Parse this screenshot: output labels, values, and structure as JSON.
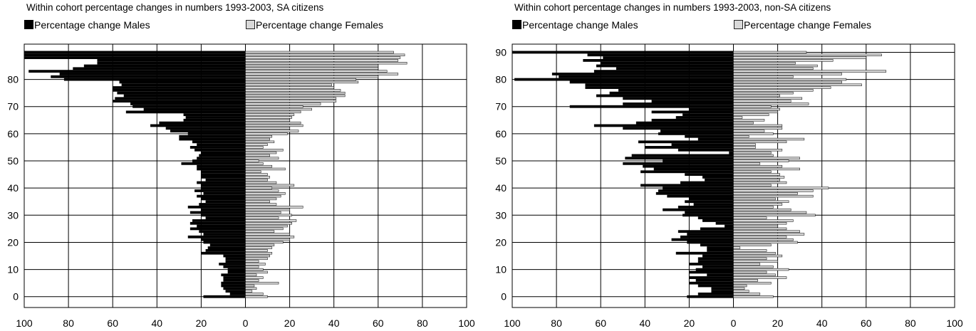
{
  "chart_data": [
    {
      "type": "bar",
      "orientation": "horizontal-butterfly",
      "title": "Within cohort percentage changes in numbers 1993-2003, SA citizens",
      "xlim": [
        -100,
        100
      ],
      "ylim": [
        -4,
        93
      ],
      "x_tick_labels": [
        "100",
        "80",
        "60",
        "40",
        "20",
        "0",
        "20",
        "40",
        "60",
        "80",
        "100"
      ],
      "y_ticks": [
        80,
        70,
        60,
        50,
        40,
        30,
        20,
        10,
        0
      ],
      "grid": true,
      "legend_position": "top",
      "colors": {
        "males": "#000000",
        "females": "#d9d9d9",
        "female_stroke": "#222222"
      },
      "categories": [
        0,
        1,
        2,
        3,
        4,
        5,
        6,
        7,
        8,
        9,
        10,
        11,
        12,
        13,
        14,
        15,
        16,
        17,
        18,
        19,
        20,
        21,
        22,
        23,
        24,
        25,
        26,
        27,
        28,
        29,
        30,
        31,
        32,
        33,
        34,
        35,
        36,
        37,
        38,
        39,
        40,
        41,
        42,
        43,
        44,
        45,
        46,
        47,
        48,
        49,
        50,
        51,
        52,
        53,
        54,
        55,
        56,
        57,
        58,
        59,
        60,
        61,
        62,
        63,
        64,
        65,
        66,
        67,
        68,
        69,
        70,
        71,
        72,
        73,
        74,
        75,
        76,
        77,
        78,
        79,
        80,
        81,
        82,
        83,
        84,
        85,
        86,
        87,
        88,
        89,
        90
      ],
      "series": [
        {
          "name": "Percentage change Males",
          "values": [
            -19,
            -7,
            -9,
            -10,
            -11,
            -11,
            -10,
            -10,
            -11,
            -8,
            -8,
            -10,
            -12,
            -9,
            -9,
            -10,
            -20,
            -18,
            -17,
            -16,
            -19,
            -20,
            -26,
            -19,
            -21,
            -25,
            -22,
            -25,
            -24,
            -18,
            -20,
            -25,
            -20,
            -26,
            -21,
            -18,
            -20,
            -22,
            -19,
            -23,
            -20,
            -20,
            -22,
            -18,
            -20,
            -20,
            -20,
            -22,
            -22,
            -29,
            -24,
            -22,
            -21,
            -20,
            -23,
            -25,
            -22,
            -24,
            -30,
            -30,
            -26,
            -34,
            -36,
            -43,
            -39,
            -28,
            -27,
            -28,
            -54,
            -46,
            -51,
            -52,
            -60,
            -59,
            -55,
            -58,
            -60,
            -60,
            -56,
            -57,
            -82,
            -88,
            -84,
            -98,
            -78,
            -73,
            -67,
            -67,
            -100,
            -100,
            -100
          ]
        },
        {
          "name": "Percentage change Females",
          "values": [
            10,
            8,
            3,
            5,
            4,
            15,
            6,
            8,
            5,
            10,
            8,
            6,
            9,
            6,
            10,
            11,
            12,
            10,
            12,
            13,
            17,
            20,
            22,
            20,
            13,
            17,
            19,
            21,
            23,
            15,
            21,
            16,
            20,
            26,
            14,
            11,
            14,
            16,
            18,
            15,
            12,
            22,
            14,
            10,
            11,
            10,
            7,
            18,
            12,
            8,
            6,
            15,
            11,
            14,
            17,
            8,
            10,
            13,
            11,
            12,
            19,
            24,
            20,
            26,
            25,
            20,
            21,
            22,
            25,
            30,
            26,
            34,
            41,
            41,
            45,
            45,
            43,
            40,
            39,
            51,
            50,
            60,
            69,
            64,
            60,
            60,
            73,
            69,
            70,
            72,
            67
          ]
        }
      ]
    },
    {
      "type": "bar",
      "orientation": "horizontal-butterfly",
      "title": "Within cohort percentage changes in numbers 1993-2003, non-SA citizens",
      "xlim": [
        -100,
        100
      ],
      "ylim": [
        -4,
        93
      ],
      "x_tick_labels": [
        "100",
        "80",
        "60",
        "40",
        "20",
        "0",
        "20",
        "40",
        "60",
        "80",
        "100"
      ],
      "y_ticks": [
        90,
        80,
        70,
        60,
        50,
        40,
        30,
        20,
        10,
        0
      ],
      "grid": true,
      "legend_position": "top",
      "colors": {
        "males": "#000000",
        "females": "#d9d9d9",
        "female_stroke": "#222222"
      },
      "categories": [
        0,
        1,
        2,
        3,
        4,
        5,
        6,
        7,
        8,
        9,
        10,
        11,
        12,
        13,
        14,
        15,
        16,
        17,
        18,
        19,
        20,
        21,
        22,
        23,
        24,
        25,
        26,
        27,
        28,
        29,
        30,
        31,
        32,
        33,
        34,
        35,
        36,
        37,
        38,
        39,
        40,
        41,
        42,
        43,
        44,
        45,
        46,
        47,
        48,
        49,
        50,
        51,
        52,
        53,
        54,
        55,
        56,
        57,
        58,
        59,
        60,
        61,
        62,
        63,
        64,
        65,
        66,
        67,
        68,
        69,
        70,
        71,
        72,
        73,
        74,
        75,
        76,
        77,
        78,
        79,
        80,
        81,
        82,
        83,
        84,
        85,
        86,
        87,
        88,
        89,
        90
      ],
      "series": [
        {
          "name": "Percentage change Males",
          "values": [
            -21,
            -16,
            -10,
            -10,
            -16,
            -20,
            -17,
            -20,
            -12,
            -20,
            -17,
            -14,
            -20,
            -16,
            -16,
            -14,
            -26,
            -12,
            -12,
            -15,
            -21,
            -28,
            -24,
            -21,
            -25,
            -15,
            -4,
            -8,
            -14,
            -16,
            -23,
            -22,
            -32,
            -25,
            -18,
            -22,
            -20,
            -30,
            -35,
            -34,
            -32,
            -42,
            -24,
            -13,
            -14,
            -22,
            -42,
            -36,
            -41,
            -50,
            -32,
            -49,
            -46,
            -2,
            -25,
            -40,
            -28,
            -43,
            -16,
            -22,
            -34,
            -33,
            -50,
            -63,
            -44,
            -37,
            -26,
            -23,
            -37,
            -20,
            -74,
            -50,
            -37,
            -50,
            -62,
            -56,
            -52,
            -67,
            -67,
            -74,
            -99,
            -79,
            -82,
            -63,
            -53,
            -62,
            -60,
            -68,
            -59,
            -66,
            -100
          ]
        },
        {
          "name": "Percentage change Females",
          "values": [
            18,
            12,
            7,
            5,
            6,
            17,
            11,
            24,
            19,
            15,
            25,
            18,
            12,
            20,
            15,
            22,
            19,
            15,
            3,
            17,
            29,
            27,
            24,
            32,
            30,
            24,
            20,
            24,
            27,
            15,
            37,
            33,
            26,
            18,
            22,
            25,
            19,
            36,
            29,
            36,
            43,
            17,
            24,
            21,
            23,
            21,
            17,
            30,
            22,
            12,
            25,
            30,
            18,
            17,
            22,
            10,
            10,
            24,
            32,
            7,
            18,
            14,
            22,
            22,
            9,
            14,
            4,
            16,
            20,
            21,
            17,
            34,
            26,
            31,
            21,
            27,
            36,
            44,
            58,
            49,
            51,
            27,
            49,
            69,
            36,
            38,
            28,
            45,
            60,
            67,
            33
          ]
        }
      ]
    }
  ]
}
